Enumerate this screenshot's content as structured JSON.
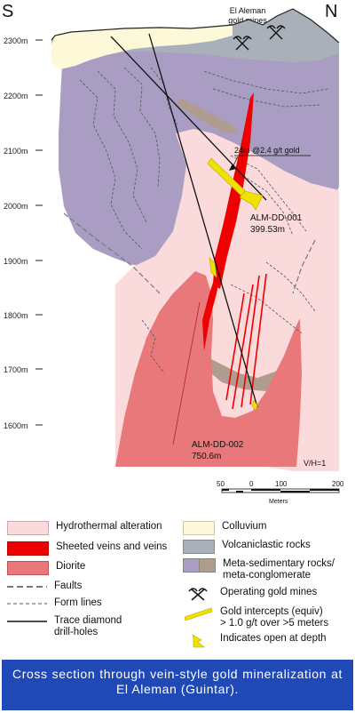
{
  "compass": {
    "south": "S",
    "north": "N"
  },
  "mines_label_line1": "El Aleman",
  "mines_label_line2": "gold mines",
  "elevations": [
    "2300m",
    "2200m",
    "2100m",
    "2000m",
    "1900m",
    "1800m",
    "1700m",
    "1600m"
  ],
  "intercept_label": "24m @2.4 g/t gold",
  "hole1": {
    "name": "ALM-DD-001",
    "depth": "399.53m"
  },
  "hole2": {
    "name": "ALM-DD-002",
    "depth": "750.6m"
  },
  "scale_ratio": "V/H=1",
  "scale_bar": {
    "ticks": [
      "50",
      "0",
      "100",
      "200"
    ],
    "unit": "Meters"
  },
  "colors": {
    "hydrothermal": "#fadada",
    "veins": "#ee0000",
    "diorite": "#e8787a",
    "colluvium": "#fcf8d8",
    "volcaniclastic": "#aab0b9",
    "metasedimentary": "#a99dc3",
    "meta_conglomerate": "#b09c8e",
    "intercept": "#f0e200"
  },
  "legend": {
    "hydrothermal": "Hydrothermal alteration",
    "veins": "Sheeted veins and veins",
    "diorite": "Diorite",
    "faults": "Faults",
    "form_lines": "Form lines",
    "drill_line1": "Trace diamond",
    "drill_line2": "drill-holes",
    "colluvium": "Colluvium",
    "volcaniclastic": "Volcaniclastic rocks",
    "meta_line1": "Meta-sedimentary rocks/",
    "meta_line2": "meta-conglomerate",
    "mines": "Operating gold mines",
    "intercepts_line1": "Gold intercepts (equiv)",
    "intercepts_line2": "> 1.0 g/t over >5 meters",
    "open": "Indicates open at depth"
  },
  "caption": "Cross section through vein-style gold mineralization at El Aleman (Guintar)."
}
